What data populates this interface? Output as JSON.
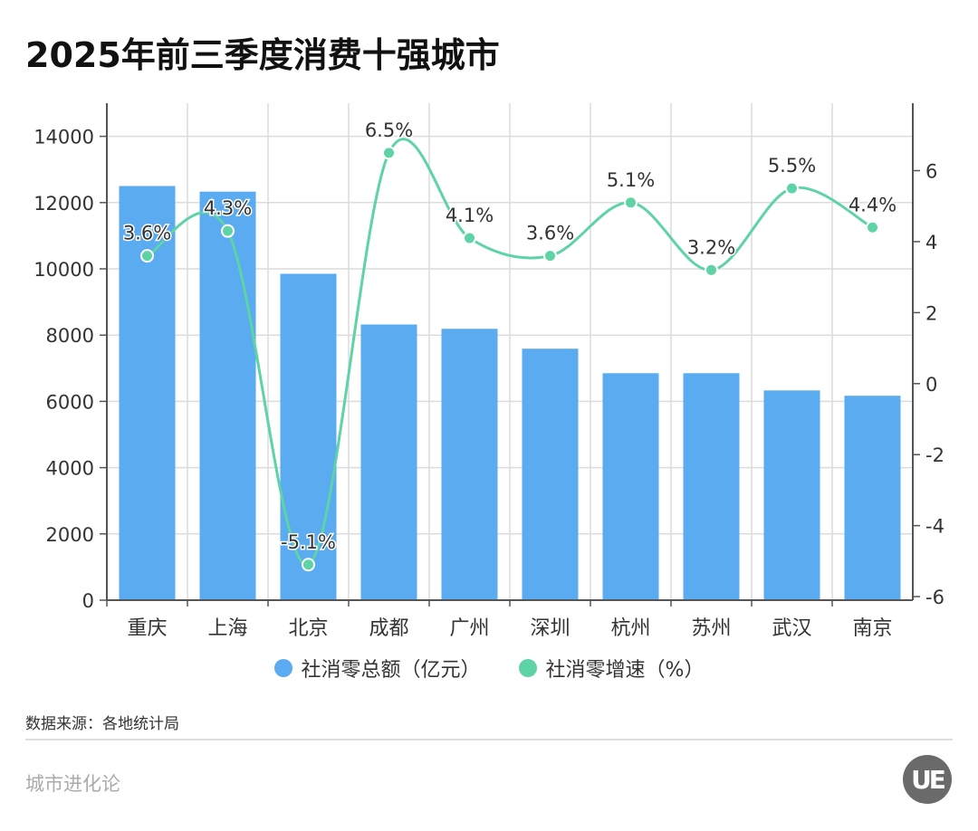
{
  "title": "2025年前三季度消费十强城市",
  "source": "数据来源：各地统计局",
  "brand": "城市进化论",
  "logo_text": "UE",
  "chart_data": {
    "type": "bar+line",
    "categories": [
      "重庆",
      "上海",
      "北京",
      "成都",
      "广州",
      "深圳",
      "杭州",
      "苏州",
      "武汉",
      "南京"
    ],
    "series": [
      {
        "name": "社消零总额（亿元）",
        "type": "bar",
        "axis": "left",
        "color": "#5aabf0",
        "values": [
          12500,
          12330,
          9850,
          8320,
          8190,
          7590,
          6850,
          6850,
          6330,
          6170
        ]
      },
      {
        "name": "社消零增速（%）",
        "type": "line",
        "axis": "right",
        "color": "#5ed3a5",
        "smooth": true,
        "values": [
          3.6,
          4.3,
          -5.1,
          6.5,
          4.1,
          3.6,
          5.1,
          3.2,
          5.5,
          4.4
        ],
        "labels": [
          "3.6%",
          "4.3%",
          "-5.1%",
          "6.5%",
          "4.1%",
          "3.6%",
          "5.1%",
          "3.2%",
          "5.5%",
          "4.4%"
        ]
      }
    ],
    "left_axis": {
      "ylim": [
        0,
        15000
      ],
      "ticks": [
        "0",
        "2000",
        "4000",
        "6000",
        "8000",
        "10000",
        "12000",
        "14000"
      ]
    },
    "right_axis": {
      "ylim": [
        -6.1,
        7.9
      ],
      "ticks": [
        "-6",
        "-4",
        "-2",
        "0",
        "2",
        "4",
        "6"
      ]
    },
    "grid": true,
    "legend": "bottom-center"
  }
}
